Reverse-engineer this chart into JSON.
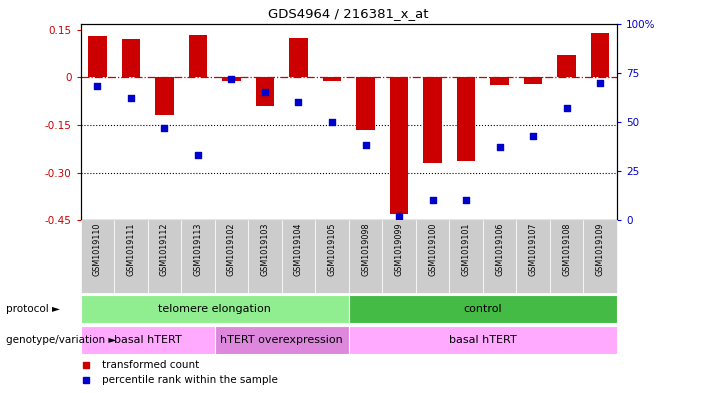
{
  "title": "GDS4964 / 216381_x_at",
  "samples": [
    "GSM1019110",
    "GSM1019111",
    "GSM1019112",
    "GSM1019113",
    "GSM1019102",
    "GSM1019103",
    "GSM1019104",
    "GSM1019105",
    "GSM1019098",
    "GSM1019099",
    "GSM1019100",
    "GSM1019101",
    "GSM1019106",
    "GSM1019107",
    "GSM1019108",
    "GSM1019109"
  ],
  "bar_values": [
    0.13,
    0.12,
    -0.12,
    0.135,
    -0.01,
    -0.09,
    0.125,
    -0.01,
    -0.165,
    -0.43,
    -0.27,
    -0.265,
    -0.025,
    -0.02,
    0.07,
    0.14
  ],
  "dot_values": [
    68,
    62,
    47,
    33,
    72,
    65,
    60,
    50,
    38,
    2,
    10,
    10,
    37,
    43,
    57,
    70
  ],
  "ylim_left": [
    -0.45,
    0.17
  ],
  "ylim_right": [
    0,
    100
  ],
  "yticks_left": [
    0.15,
    0.0,
    -0.15,
    -0.3,
    -0.45
  ],
  "yticks_right": [
    100,
    75,
    50,
    25,
    0
  ],
  "ytick_labels_left": [
    "0.15",
    "0",
    "-0.15",
    "-0.30",
    "-0.45"
  ],
  "ytick_labels_right": [
    "100%",
    "75",
    "50",
    "25",
    "0"
  ],
  "dotted_lines": [
    -0.15,
    -0.3
  ],
  "bar_color": "#cc0000",
  "dot_color": "#0000cc",
  "hline_color": "#cc0000",
  "dotted_color": "#000000",
  "protocol_label": "protocol",
  "genotype_label": "genotype/variation",
  "protocol_groups": [
    {
      "label": "telomere elongation",
      "start": 0,
      "end": 7,
      "color": "#90ee90"
    },
    {
      "label": "control",
      "start": 8,
      "end": 15,
      "color": "#44bb44"
    }
  ],
  "genotype_groups": [
    {
      "label": "basal hTERT",
      "start": 0,
      "end": 3,
      "color": "#ffaaff"
    },
    {
      "label": "hTERT overexpression",
      "start": 4,
      "end": 7,
      "color": "#dd88dd"
    },
    {
      "label": "basal hTERT",
      "start": 8,
      "end": 15,
      "color": "#ffaaff"
    }
  ],
  "legend_items": [
    {
      "label": "transformed count",
      "color": "#cc0000"
    },
    {
      "label": "percentile rank within the sample",
      "color": "#0000cc"
    }
  ],
  "bg_color": "#ffffff",
  "tick_box_color": "#cccccc"
}
